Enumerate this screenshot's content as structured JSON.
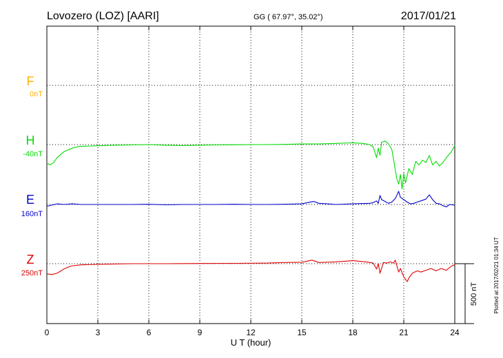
{
  "header": {
    "station": "Lovozero (LOZ)  [AARI]",
    "coords": "GG ( 67.97°,  35.02°)",
    "date": "2017/01/21"
  },
  "footer": {
    "plotted": "Plotted at 2017/02/21 01:34 UT"
  },
  "colors": {
    "F": "#ffb000",
    "H": "#00dd00",
    "E": "#0000cc",
    "Z": "#dd0000",
    "grid": "#000000"
  },
  "chart_data": {
    "type": "line",
    "xlabel": "U T (hour)",
    "xlim": [
      0,
      24
    ],
    "xticks": [
      0,
      3,
      6,
      9,
      12,
      15,
      18,
      21,
      24
    ],
    "scale_bar": {
      "label": "500 nT",
      "value": 500
    },
    "components": [
      {
        "name": "F",
        "baseline_label": "0nT",
        "show_line": false,
        "points": []
      },
      {
        "name": "H",
        "baseline_label": "-40nT",
        "show_line": true,
        "points": [
          [
            0,
            -155
          ],
          [
            0.2,
            -170
          ],
          [
            0.4,
            -150
          ],
          [
            0.6,
            -110
          ],
          [
            0.8,
            -85
          ],
          [
            1.0,
            -60
          ],
          [
            1.3,
            -40
          ],
          [
            1.6,
            -25
          ],
          [
            2.0,
            -15
          ],
          [
            3,
            -10
          ],
          [
            4,
            -5
          ],
          [
            5,
            -3
          ],
          [
            6,
            0
          ],
          [
            7,
            -5
          ],
          [
            8,
            -8
          ],
          [
            9,
            -5
          ],
          [
            10,
            -3
          ],
          [
            11,
            -2
          ],
          [
            12,
            0
          ],
          [
            13,
            0
          ],
          [
            14,
            2
          ],
          [
            15,
            5
          ],
          [
            16,
            5
          ],
          [
            17,
            10
          ],
          [
            18,
            15
          ],
          [
            18.6,
            10
          ],
          [
            19.0,
            0
          ],
          [
            19.2,
            -20
          ],
          [
            19.4,
            -110
          ],
          [
            19.5,
            -30
          ],
          [
            19.6,
            -90
          ],
          [
            19.7,
            20
          ],
          [
            19.9,
            30
          ],
          [
            20.1,
            5
          ],
          [
            20.3,
            -40
          ],
          [
            20.5,
            -210
          ],
          [
            20.6,
            -290
          ],
          [
            20.7,
            -330
          ],
          [
            20.8,
            -250
          ],
          [
            20.9,
            -370
          ],
          [
            21.0,
            -240
          ],
          [
            21.1,
            -320
          ],
          [
            21.3,
            -200
          ],
          [
            21.5,
            -250
          ],
          [
            21.7,
            -140
          ],
          [
            21.9,
            -170
          ],
          [
            22.1,
            -130
          ],
          [
            22.3,
            -150
          ],
          [
            22.5,
            -90
          ],
          [
            22.7,
            -170
          ],
          [
            22.9,
            -140
          ],
          [
            23.1,
            -180
          ],
          [
            23.3,
            -150
          ],
          [
            23.5,
            -110
          ],
          [
            23.8,
            -60
          ],
          [
            24,
            -10
          ]
        ]
      },
      {
        "name": "E",
        "baseline_label": "160nT",
        "show_line": true,
        "points": [
          [
            0,
            -15
          ],
          [
            0.3,
            -5
          ],
          [
            0.6,
            5
          ],
          [
            1.0,
            0
          ],
          [
            1.5,
            5
          ],
          [
            2,
            0
          ],
          [
            3,
            0
          ],
          [
            4,
            0
          ],
          [
            5,
            0
          ],
          [
            6,
            2
          ],
          [
            7,
            -3
          ],
          [
            8,
            0
          ],
          [
            9,
            0
          ],
          [
            10,
            0
          ],
          [
            11,
            2
          ],
          [
            12,
            0
          ],
          [
            13,
            0
          ],
          [
            14,
            2
          ],
          [
            15,
            5
          ],
          [
            15.7,
            25
          ],
          [
            16,
            10
          ],
          [
            16.5,
            5
          ],
          [
            17,
            0
          ],
          [
            18,
            5
          ],
          [
            19,
            10
          ],
          [
            19.2,
            15
          ],
          [
            19.4,
            30
          ],
          [
            19.5,
            10
          ],
          [
            19.6,
            75
          ],
          [
            19.7,
            40
          ],
          [
            19.9,
            25
          ],
          [
            20.1,
            10
          ],
          [
            20.3,
            20
          ],
          [
            20.5,
            50
          ],
          [
            20.7,
            110
          ],
          [
            20.8,
            60
          ],
          [
            21.0,
            40
          ],
          [
            21.2,
            20
          ],
          [
            21.4,
            5
          ],
          [
            21.6,
            10
          ],
          [
            21.8,
            20
          ],
          [
            22.0,
            30
          ],
          [
            22.3,
            45
          ],
          [
            22.5,
            80
          ],
          [
            22.7,
            40
          ],
          [
            22.9,
            10
          ],
          [
            23.1,
            5
          ],
          [
            23.3,
            -10
          ],
          [
            23.5,
            -20
          ],
          [
            23.7,
            0
          ],
          [
            24,
            -5
          ]
        ]
      },
      {
        "name": "Z",
        "baseline_label": "250nT",
        "show_line": true,
        "points": [
          [
            0,
            -85
          ],
          [
            0.3,
            -90
          ],
          [
            0.6,
            -80
          ],
          [
            1.0,
            -45
          ],
          [
            1.4,
            -20
          ],
          [
            2,
            -10
          ],
          [
            3,
            -5
          ],
          [
            5,
            0
          ],
          [
            7,
            0
          ],
          [
            9,
            2
          ],
          [
            11,
            3
          ],
          [
            13,
            5
          ],
          [
            14,
            10
          ],
          [
            15,
            12
          ],
          [
            15.6,
            30
          ],
          [
            16,
            10
          ],
          [
            17,
            15
          ],
          [
            18,
            25
          ],
          [
            18.8,
            15
          ],
          [
            19.2,
            5
          ],
          [
            19.4,
            -45
          ],
          [
            19.5,
            0
          ],
          [
            19.6,
            -80
          ],
          [
            19.8,
            10
          ],
          [
            20.0,
            5
          ],
          [
            20.2,
            15
          ],
          [
            20.4,
            5
          ],
          [
            20.5,
            30
          ],
          [
            20.6,
            -20
          ],
          [
            20.7,
            -70
          ],
          [
            20.8,
            -40
          ],
          [
            21.0,
            -110
          ],
          [
            21.2,
            -150
          ],
          [
            21.3,
            -120
          ],
          [
            21.5,
            -80
          ],
          [
            21.8,
            -60
          ],
          [
            22.0,
            -70
          ],
          [
            22.3,
            -55
          ],
          [
            22.6,
            -40
          ],
          [
            22.9,
            -60
          ],
          [
            23.2,
            -40
          ],
          [
            23.5,
            -55
          ],
          [
            23.8,
            -20
          ],
          [
            24,
            -10
          ]
        ]
      }
    ]
  }
}
